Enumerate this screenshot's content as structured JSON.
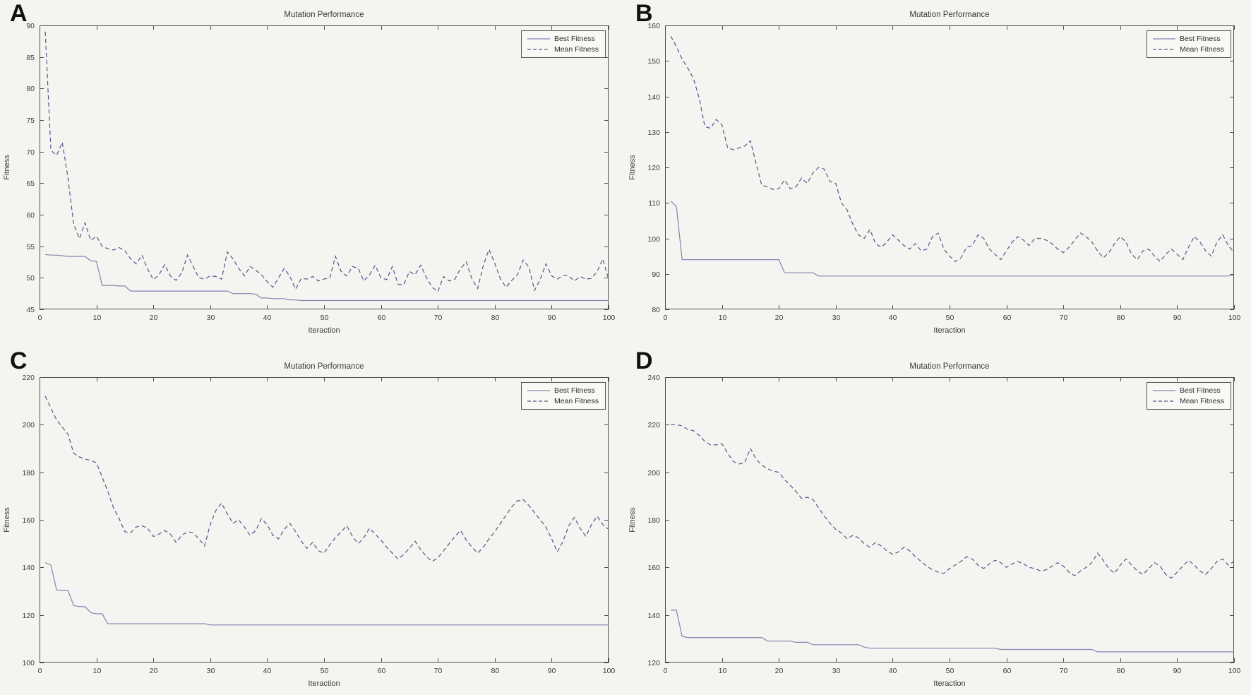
{
  "figure": {
    "title_repeated": "Mutation Performance",
    "xlabel_repeated": "Iteraction",
    "ylabel_repeated": "Fitness",
    "legend_entries": [
      "Best Fitness",
      "Mean Fitness"
    ]
  },
  "colors": {
    "background": "#f6f4f0",
    "best_fitness_line": "#8185b2",
    "mean_fitness_line": "#53568e",
    "axis_frame": "#4d4d4d",
    "text": "#3c3c3c",
    "panel_letter": "#111111"
  },
  "chart_data": [
    {
      "type": "line",
      "panel_label": "A",
      "title": "Mutation Performance",
      "xlabel": "Iteraction",
      "ylabel": "Fitness",
      "xlim": [
        0,
        100
      ],
      "ylim": [
        45,
        90
      ],
      "xticks": [
        0,
        10,
        20,
        30,
        40,
        50,
        60,
        70,
        80,
        90,
        100
      ],
      "yticks": [
        45,
        50,
        55,
        60,
        65,
        70,
        75,
        80,
        85,
        90
      ],
      "grid": false,
      "legend_position": "top-right",
      "x_start": 1,
      "x_step": 1,
      "series": [
        {
          "name": "Best Fitness",
          "style": "solid",
          "values": [
            53.7,
            53.6,
            53.6,
            53.5,
            53.4,
            53.4,
            53.4,
            53.4,
            52.7,
            52.6,
            48.8,
            48.8,
            48.8,
            48.7,
            48.7,
            47.9,
            47.9,
            47.9,
            47.9,
            47.9,
            47.9,
            47.9,
            47.9,
            47.9,
            47.9,
            47.9,
            47.9,
            47.9,
            47.9,
            47.9,
            47.9,
            47.9,
            47.9,
            47.5,
            47.5,
            47.5,
            47.5,
            47.4,
            46.8,
            46.8,
            46.7,
            46.7,
            46.7,
            46.5,
            46.5,
            46.4,
            46.4,
            46.4,
            46.4,
            46.4,
            46.4,
            46.4,
            46.4,
            46.4,
            46.4,
            46.4,
            46.4,
            46.4,
            46.4,
            46.4,
            46.4,
            46.4,
            46.4,
            46.4,
            46.4,
            46.4,
            46.4,
            46.4,
            46.4,
            46.4,
            46.4,
            46.4,
            46.4,
            46.4,
            46.4,
            46.4,
            46.4,
            46.4,
            46.4,
            46.4,
            46.4,
            46.4,
            46.4,
            46.4,
            46.4,
            46.4,
            46.4,
            46.4,
            46.4,
            46.4,
            46.4,
            46.4,
            46.4,
            46.4,
            46.4,
            46.4,
            46.4,
            46.4,
            46.4,
            46.4
          ]
        },
        {
          "name": "Mean Fitness",
          "style": "dashed",
          "values": [
            89.0,
            70.2,
            69.4,
            71.5,
            65.8,
            58.5,
            56.2,
            58.7,
            55.9,
            56.6,
            55.0,
            54.6,
            54.4,
            54.8,
            54.3,
            53.0,
            52.2,
            53.6,
            51.4,
            49.7,
            50.5,
            52.1,
            50.3,
            49.6,
            50.8,
            53.6,
            51.8,
            50.0,
            49.8,
            50.3,
            50.2,
            49.8,
            54.1,
            53.0,
            51.5,
            50.3,
            51.8,
            51.2,
            50.5,
            49.4,
            48.5,
            50.0,
            51.5,
            50.2,
            48.2,
            49.9,
            49.8,
            50.2,
            49.5,
            49.8,
            50.0,
            53.4,
            51.0,
            50.3,
            51.8,
            51.5,
            49.5,
            50.5,
            52.0,
            50.0,
            49.7,
            51.8,
            49.0,
            48.9,
            51.0,
            50.5,
            52.0,
            50.0,
            48.5,
            47.8,
            50.2,
            49.5,
            49.8,
            51.5,
            52.5,
            49.8,
            48.3,
            52.0,
            54.5,
            52.3,
            49.8,
            48.5,
            49.6,
            50.5,
            52.8,
            51.7,
            48.0,
            49.8,
            52.2,
            50.3,
            49.8,
            50.4,
            50.3,
            49.5,
            50.2,
            49.8,
            49.9,
            51.0,
            53.0,
            49.8
          ]
        }
      ]
    },
    {
      "type": "line",
      "panel_label": "B",
      "title": "Mutation Performance",
      "xlabel": "Iteraction",
      "ylabel": "Fitness",
      "xlim": [
        0,
        100
      ],
      "ylim": [
        80,
        160
      ],
      "xticks": [
        0,
        10,
        20,
        30,
        40,
        50,
        60,
        70,
        80,
        90,
        100
      ],
      "yticks": [
        80,
        90,
        100,
        110,
        120,
        130,
        140,
        150,
        160
      ],
      "grid": false,
      "legend_position": "top-right",
      "x_start": 1,
      "x_step": 1,
      "series": [
        {
          "name": "Best Fitness",
          "style": "solid",
          "values": [
            110.5,
            109.0,
            94.0,
            94.0,
            94.0,
            94.0,
            94.0,
            94.0,
            94.0,
            94.0,
            94.0,
            94.0,
            94.0,
            94.0,
            94.0,
            94.0,
            94.0,
            94.0,
            94.0,
            94.0,
            90.3,
            90.3,
            90.3,
            90.3,
            90.3,
            90.3,
            89.4,
            89.4,
            89.4,
            89.4,
            89.4,
            89.4,
            89.4,
            89.4,
            89.4,
            89.4,
            89.4,
            89.4,
            89.4,
            89.4,
            89.4,
            89.4,
            89.4,
            89.4,
            89.4,
            89.4,
            89.4,
            89.4,
            89.4,
            89.4,
            89.4,
            89.4,
            89.4,
            89.4,
            89.4,
            89.4,
            89.4,
            89.4,
            89.4,
            89.4,
            89.4,
            89.4,
            89.4,
            89.4,
            89.4,
            89.4,
            89.4,
            89.4,
            89.4,
            89.4,
            89.4,
            89.4,
            89.4,
            89.4,
            89.4,
            89.4,
            89.4,
            89.4,
            89.4,
            89.4,
            89.4,
            89.4,
            89.4,
            89.4,
            89.4,
            89.4,
            89.4,
            89.4,
            89.4,
            89.4,
            89.4,
            89.4,
            89.4,
            89.4,
            89.4,
            89.4,
            89.4,
            89.4,
            89.4,
            89.6
          ]
        },
        {
          "name": "Mean Fitness",
          "style": "dashed",
          "values": [
            157.0,
            154.0,
            150.5,
            148.0,
            145.0,
            139.5,
            131.5,
            131.0,
            133.5,
            132.0,
            125.5,
            125.0,
            125.5,
            126.0,
            127.5,
            121.0,
            115.0,
            114.5,
            113.8,
            114.0,
            116.5,
            114.0,
            114.5,
            117.0,
            115.5,
            118.5,
            120.0,
            119.5,
            116.0,
            115.5,
            110.0,
            108.0,
            104.0,
            101.0,
            100.0,
            102.5,
            98.5,
            97.5,
            99.0,
            101.0,
            99.5,
            98.0,
            97.0,
            98.5,
            96.5,
            97.0,
            100.5,
            101.5,
            97.0,
            95.0,
            93.5,
            94.5,
            97.5,
            98.0,
            101.0,
            100.0,
            97.0,
            95.5,
            94.0,
            96.5,
            99.0,
            100.5,
            99.5,
            98.0,
            100.0,
            100.0,
            99.5,
            98.5,
            97.0,
            96.0,
            97.5,
            99.5,
            101.5,
            100.5,
            99.0,
            96.5,
            94.5,
            96.0,
            98.5,
            100.5,
            99.0,
            95.5,
            94.0,
            96.5,
            97.0,
            95.0,
            93.5,
            95.5,
            97.0,
            95.5,
            94.0,
            97.5,
            100.5,
            99.0,
            96.5,
            95.0,
            99.0,
            101.0,
            98.0,
            96.0
          ]
        }
      ]
    },
    {
      "type": "line",
      "panel_label": "C",
      "title": "Mutation Performance",
      "xlabel": "Iteraction",
      "ylabel": "Fitness",
      "xlim": [
        0,
        100
      ],
      "ylim": [
        100,
        220
      ],
      "xticks": [
        0,
        10,
        20,
        30,
        40,
        50,
        60,
        70,
        80,
        90,
        100
      ],
      "yticks": [
        100,
        120,
        140,
        160,
        180,
        200,
        220
      ],
      "grid": false,
      "legend_position": "top-right",
      "x_start": 1,
      "x_step": 1,
      "series": [
        {
          "name": "Best Fitness",
          "style": "solid",
          "values": [
            142.0,
            141.0,
            130.5,
            130.3,
            130.3,
            124.0,
            123.5,
            123.5,
            121.0,
            120.5,
            120.5,
            116.3,
            116.3,
            116.3,
            116.3,
            116.3,
            116.3,
            116.3,
            116.3,
            116.3,
            116.3,
            116.3,
            116.3,
            116.3,
            116.3,
            116.3,
            116.3,
            116.3,
            116.3,
            115.8,
            115.8,
            115.8,
            115.8,
            115.8,
            115.8,
            115.8,
            115.8,
            115.8,
            115.8,
            115.8,
            115.8,
            115.8,
            115.8,
            115.8,
            115.8,
            115.8,
            115.8,
            115.8,
            115.8,
            115.8,
            115.8,
            115.8,
            115.8,
            115.8,
            115.8,
            115.8,
            115.8,
            115.8,
            115.8,
            115.8,
            115.8,
            115.8,
            115.8,
            115.8,
            115.8,
            115.8,
            115.8,
            115.8,
            115.8,
            115.8,
            115.8,
            115.8,
            115.8,
            115.8,
            115.8,
            115.8,
            115.8,
            115.8,
            115.8,
            115.8,
            115.8,
            115.8,
            115.8,
            115.8,
            115.8,
            115.8,
            115.8,
            115.8,
            115.8,
            115.8,
            115.8,
            115.8,
            115.8,
            115.8,
            115.8,
            115.8,
            115.8,
            115.8,
            115.8,
            115.8
          ]
        },
        {
          "name": "Mean Fitness",
          "style": "dashed",
          "values": [
            212.0,
            207.0,
            202.0,
            199.0,
            196.0,
            188.0,
            186.5,
            185.5,
            185.0,
            184.0,
            178.0,
            172.0,
            165.0,
            160.5,
            155.0,
            154.5,
            157.0,
            157.5,
            156.5,
            153.0,
            154.0,
            155.5,
            154.0,
            150.5,
            153.5,
            155.0,
            154.5,
            152.0,
            149.0,
            158.0,
            164.0,
            167.0,
            162.5,
            158.5,
            160.0,
            157.0,
            153.5,
            155.5,
            160.5,
            158.0,
            153.5,
            152.0,
            156.0,
            158.5,
            155.0,
            151.0,
            148.0,
            150.5,
            147.0,
            146.0,
            149.5,
            152.5,
            155.0,
            157.5,
            153.0,
            150.0,
            152.5,
            156.5,
            154.0,
            151.5,
            148.5,
            146.0,
            143.5,
            145.5,
            148.0,
            151.0,
            147.5,
            144.5,
            142.5,
            144.0,
            147.0,
            150.0,
            153.0,
            155.5,
            151.5,
            148.5,
            146.0,
            148.5,
            152.0,
            155.0,
            158.5,
            162.0,
            165.5,
            168.0,
            168.5,
            166.0,
            163.0,
            160.0,
            157.0,
            152.0,
            146.5,
            151.0,
            157.5,
            161.0,
            156.5,
            153.0,
            158.0,
            161.5,
            158.0,
            156.0
          ]
        }
      ]
    },
    {
      "type": "line",
      "panel_label": "D",
      "title": "Mutation Performance",
      "xlabel": "Iteraction",
      "ylabel": "Fitness",
      "xlim": [
        0,
        100
      ],
      "ylim": [
        120,
        240
      ],
      "xticks": [
        0,
        10,
        20,
        30,
        40,
        50,
        60,
        70,
        80,
        90,
        100
      ],
      "yticks": [
        120,
        140,
        160,
        180,
        200,
        220,
        240
      ],
      "grid": false,
      "legend_position": "top-right",
      "x_start": 1,
      "x_step": 1,
      "series": [
        {
          "name": "Best Fitness",
          "style": "solid",
          "values": [
            142.0,
            142.0,
            131.0,
            130.5,
            130.5,
            130.5,
            130.5,
            130.5,
            130.5,
            130.5,
            130.5,
            130.5,
            130.5,
            130.5,
            130.5,
            130.5,
            130.5,
            129.0,
            129.0,
            129.0,
            129.0,
            129.0,
            128.5,
            128.5,
            128.5,
            127.5,
            127.5,
            127.5,
            127.5,
            127.5,
            127.5,
            127.5,
            127.5,
            127.5,
            126.5,
            126.0,
            126.0,
            126.0,
            126.0,
            126.0,
            126.0,
            126.0,
            126.0,
            126.0,
            126.0,
            126.0,
            126.0,
            126.0,
            126.0,
            126.0,
            126.0,
            126.0,
            126.0,
            126.0,
            126.0,
            126.0,
            126.0,
            126.0,
            125.5,
            125.5,
            125.5,
            125.5,
            125.5,
            125.5,
            125.5,
            125.5,
            125.5,
            125.5,
            125.5,
            125.5,
            125.5,
            125.5,
            125.5,
            125.5,
            125.5,
            124.5,
            124.5,
            124.5,
            124.5,
            124.5,
            124.5,
            124.5,
            124.5,
            124.5,
            124.5,
            124.5,
            124.5,
            124.5,
            124.5,
            124.5,
            124.5,
            124.5,
            124.5,
            124.5,
            124.5,
            124.5,
            124.5,
            124.5,
            124.5,
            124.5
          ]
        },
        {
          "name": "Mean Fitness",
          "style": "dashed",
          "values": [
            220.0,
            220.0,
            219.5,
            218.0,
            217.5,
            215.5,
            213.0,
            211.5,
            211.5,
            212.0,
            208.0,
            204.5,
            203.5,
            204.0,
            210.0,
            205.5,
            203.0,
            201.5,
            200.5,
            200.0,
            197.0,
            194.5,
            192.0,
            189.0,
            189.5,
            188.5,
            185.0,
            181.5,
            178.5,
            176.0,
            174.5,
            172.0,
            173.5,
            172.5,
            170.0,
            168.5,
            170.5,
            169.0,
            167.0,
            165.5,
            166.5,
            168.5,
            167.0,
            164.5,
            162.5,
            160.5,
            159.0,
            158.0,
            157.5,
            159.5,
            161.0,
            162.5,
            164.5,
            163.5,
            161.0,
            159.5,
            161.5,
            163.0,
            162.0,
            160.0,
            161.5,
            162.5,
            161.5,
            160.0,
            159.5,
            158.5,
            159.0,
            160.5,
            162.0,
            160.5,
            158.0,
            156.5,
            158.5,
            160.0,
            162.0,
            166.0,
            163.0,
            159.5,
            157.5,
            161.0,
            163.5,
            161.0,
            158.5,
            157.0,
            159.5,
            162.0,
            160.5,
            157.0,
            155.5,
            158.0,
            160.5,
            163.0,
            161.0,
            158.5,
            157.0,
            159.5,
            162.5,
            163.5,
            161.0,
            162.5
          ]
        }
      ]
    }
  ]
}
